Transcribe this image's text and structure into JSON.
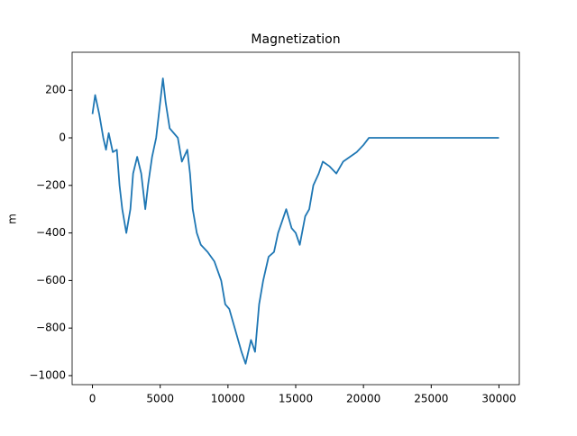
{
  "chart_data": {
    "type": "line",
    "title": "Magnetization",
    "y_label": "m",
    "x": [
      0,
      200,
      500,
      800,
      1000,
      1200,
      1500,
      1800,
      2000,
      2200,
      2500,
      2800,
      3000,
      3300,
      3600,
      3900,
      4100,
      4400,
      4700,
      5000,
      5200,
      5400,
      5700,
      6000,
      6300,
      6600,
      7000,
      7200,
      7400,
      7700,
      8000,
      8500,
      9000,
      9500,
      9800,
      10100,
      10500,
      11000,
      11300,
      11700,
      12000,
      12300,
      12600,
      13000,
      13400,
      13700,
      14000,
      14300,
      14700,
      15000,
      15300,
      15700,
      16000,
      16300,
      16700,
      17000,
      17500,
      18000,
      18500,
      19000,
      19500,
      20000,
      20400,
      30000
    ],
    "series": [
      {
        "name": "m",
        "color": "#1f77b4",
        "values": [
          100,
          180,
          100,
          0,
          -50,
          20,
          -60,
          -50,
          -200,
          -300,
          -400,
          -300,
          -150,
          -80,
          -150,
          -300,
          -200,
          -80,
          0,
          150,
          250,
          150,
          40,
          20,
          0,
          -100,
          -50,
          -150,
          -300,
          -400,
          -450,
          -480,
          -520,
          -600,
          -700,
          -720,
          -800,
          -900,
          -950,
          -850,
          -900,
          -700,
          -600,
          -500,
          -480,
          -400,
          -350,
          -300,
          -380,
          -400,
          -450,
          -330,
          -300,
          -200,
          -150,
          -100,
          -120,
          -150,
          -100,
          -80,
          -60,
          -30,
          0,
          0
        ]
      }
    ],
    "xlim": [
      -1500,
      31500
    ],
    "ylim": [
      -1038,
      360
    ],
    "xticks": [
      0,
      5000,
      10000,
      15000,
      20000,
      25000,
      30000
    ],
    "yticks": [
      {
        "value": -1000,
        "label": "−1000"
      },
      {
        "value": -800,
        "label": "−800"
      },
      {
        "value": -600,
        "label": "−600"
      },
      {
        "value": -400,
        "label": "−400"
      },
      {
        "value": -200,
        "label": "−200"
      },
      0,
      200
    ]
  }
}
